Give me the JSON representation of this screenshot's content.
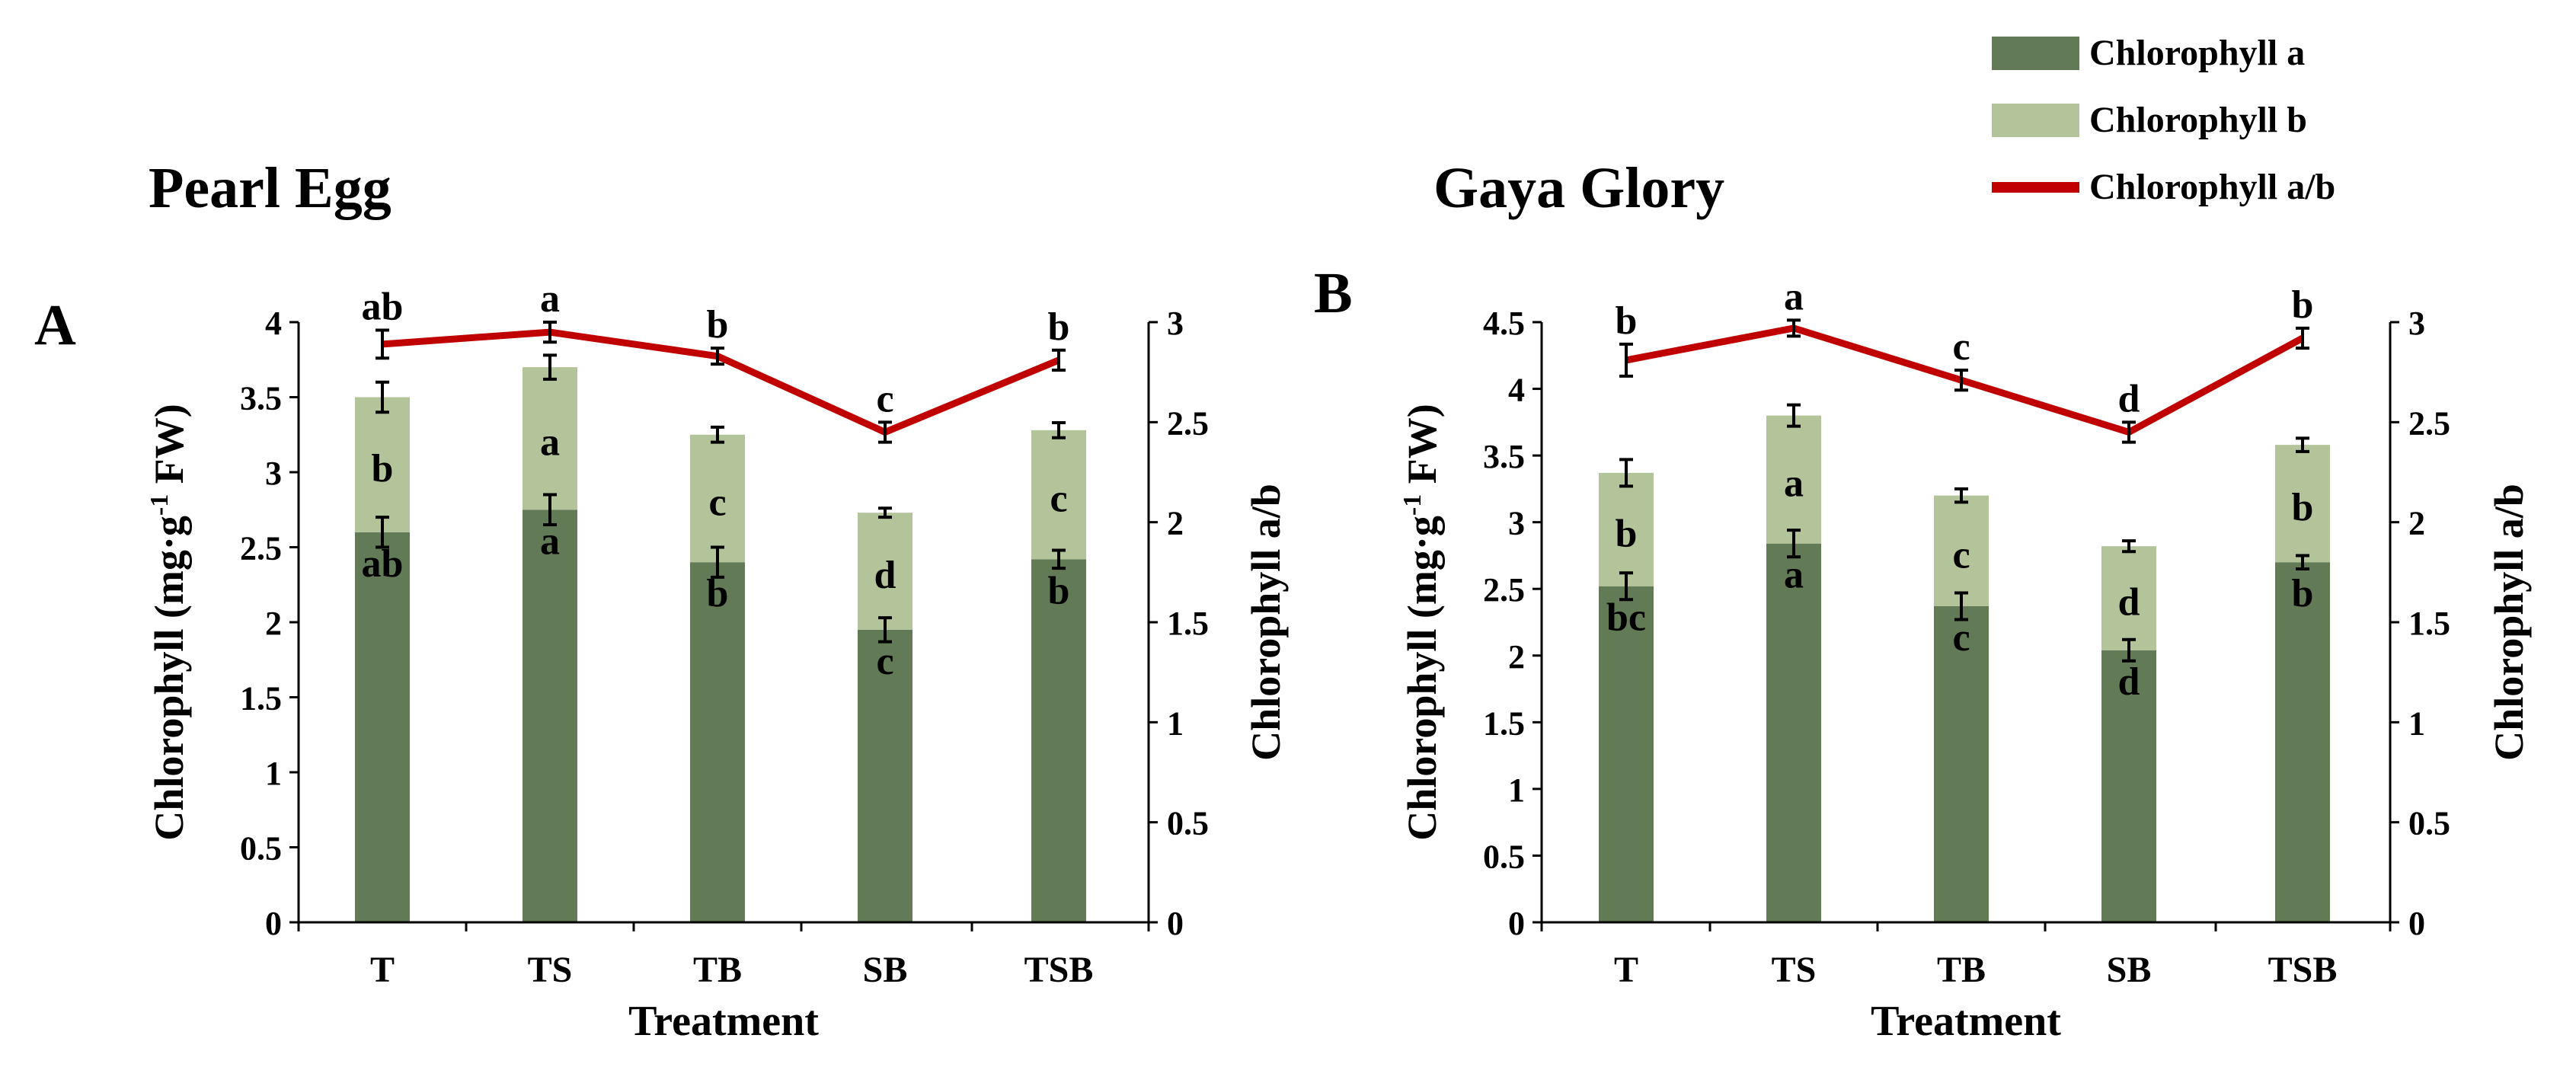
{
  "legend": {
    "items": [
      {
        "label": "Chlorophyll a",
        "color": "#627a56",
        "kind": "box"
      },
      {
        "label": "Chlorophyll b",
        "color": "#b3c49b",
        "kind": "box"
      },
      {
        "label": "Chlorophyll a/b",
        "color": "#c00000",
        "kind": "line"
      }
    ]
  },
  "chart_data": [
    {
      "type": "bar",
      "subtype": "stacked-bar-with-line",
      "panel_letter": "A",
      "title": "Pearl Egg",
      "xlabel": "Treatment",
      "ylabel": "Chlorophyll (mg·g",
      "ylabel_sup": "-1",
      "ylabel_suffix": " FW)",
      "y2label": "Chlorophyll  a/b",
      "categories": [
        "T",
        "TS",
        "TB",
        "SB",
        "TSB"
      ],
      "ylim": [
        0,
        4
      ],
      "yticks": [
        0,
        0.5,
        1,
        1.5,
        2,
        2.5,
        3,
        3.5,
        4
      ],
      "ytick_labels": [
        "0",
        "0.5",
        "1",
        "1.5",
        "2",
        "2.5",
        "3",
        "3.5",
        "4"
      ],
      "y2lim": [
        0,
        3
      ],
      "y2ticks": [
        0,
        0.5,
        1,
        1.5,
        2,
        2.5,
        3
      ],
      "y2tick_labels": [
        "0",
        "0.5",
        "1",
        "1.5",
        "2",
        "2.5",
        "3"
      ],
      "series": [
        {
          "name": "Chlorophyll a",
          "values": [
            2.6,
            2.75,
            2.4,
            1.95,
            2.42
          ],
          "errors": [
            0.1,
            0.1,
            0.1,
            0.08,
            0.06
          ],
          "letters": [
            "ab",
            "a",
            "b",
            "c",
            "b"
          ]
        },
        {
          "name": "Chlorophyll b",
          "values": [
            0.9,
            0.95,
            0.85,
            0.78,
            0.86
          ],
          "errors": [
            0.1,
            0.08,
            0.05,
            0.03,
            0.05
          ],
          "letters": [
            "b",
            "a",
            "c",
            "d",
            "c"
          ]
        },
        {
          "name": "Chlorophyll a/b",
          "axis": "right",
          "values": [
            2.89,
            2.95,
            2.83,
            2.45,
            2.81
          ],
          "errors": [
            0.07,
            0.05,
            0.04,
            0.05,
            0.05
          ],
          "letters": [
            "ab",
            "a",
            "b",
            "c",
            "b"
          ]
        }
      ]
    },
    {
      "type": "bar",
      "subtype": "stacked-bar-with-line",
      "panel_letter": "B",
      "title": "Gaya Glory",
      "xlabel": "Treatment",
      "ylabel": "Chlorophyll (mg·g",
      "ylabel_sup": "-1",
      "ylabel_suffix": " FW)",
      "y2label": "Chlorophyll  a/b",
      "categories": [
        "T",
        "TS",
        "TB",
        "SB",
        "TSB"
      ],
      "ylim": [
        0,
        4.5
      ],
      "yticks": [
        0,
        0.5,
        1,
        1.5,
        2,
        2.5,
        3,
        3.5,
        4,
        4.5
      ],
      "ytick_labels": [
        "0",
        "0.5",
        "1",
        "1.5",
        "2",
        "2.5",
        "3",
        "3.5",
        "4",
        "4.5"
      ],
      "y2lim": [
        0,
        3
      ],
      "y2ticks": [
        0,
        0.5,
        1,
        1.5,
        2,
        2.5,
        3
      ],
      "y2tick_labels": [
        "0",
        "0.5",
        "1",
        "1.5",
        "2",
        "2.5",
        "3"
      ],
      "series": [
        {
          "name": "Chlorophyll a",
          "values": [
            2.52,
            2.84,
            2.37,
            2.04,
            2.7
          ],
          "errors": [
            0.1,
            0.1,
            0.1,
            0.08,
            0.05
          ],
          "letters": [
            "bc",
            "a",
            "c",
            "d",
            "b"
          ]
        },
        {
          "name": "Chlorophyll b",
          "values": [
            0.85,
            0.96,
            0.83,
            0.78,
            0.88
          ],
          "errors": [
            0.1,
            0.08,
            0.05,
            0.04,
            0.05
          ],
          "letters": [
            "b",
            "a",
            "c",
            "d",
            "b"
          ]
        },
        {
          "name": "Chlorophyll a/b",
          "axis": "right",
          "values": [
            2.81,
            2.97,
            2.71,
            2.45,
            2.92
          ],
          "errors": [
            0.08,
            0.04,
            0.05,
            0.05,
            0.05
          ],
          "letters": [
            "b",
            "a",
            "c",
            "d",
            "b"
          ]
        }
      ]
    }
  ]
}
